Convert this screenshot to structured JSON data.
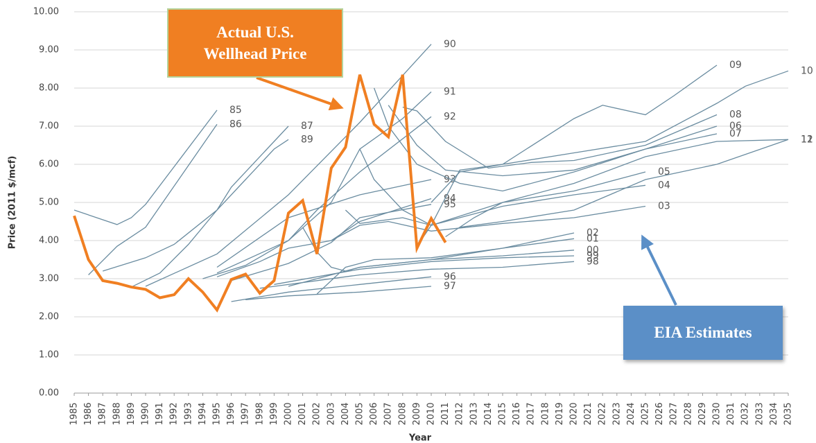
{
  "chart_data": {
    "type": "line",
    "xlabel": "Year",
    "ylabel": "Price (2011 $/mcf)",
    "xlim": [
      1985,
      2035
    ],
    "xticks": [
      1985,
      1986,
      1987,
      1988,
      1989,
      1990,
      1991,
      1992,
      1993,
      1994,
      1995,
      1996,
      1997,
      1998,
      1999,
      2000,
      2001,
      2002,
      2003,
      2004,
      2005,
      2006,
      2007,
      2008,
      2009,
      2010,
      2011,
      2012,
      2013,
      2014,
      2015,
      2016,
      2017,
      2018,
      2019,
      2020,
      2021,
      2022,
      2023,
      2024,
      2025,
      2026,
      2027,
      2028,
      2029,
      2030,
      2031,
      2032,
      2033,
      2034,
      2035
    ],
    "ylim": [
      0,
      10
    ],
    "yticks": [
      {
        "value": 0,
        "label": "0.00"
      },
      {
        "value": 1,
        "label": "1.00"
      },
      {
        "value": 2,
        "label": "2.00"
      },
      {
        "value": 3,
        "label": "3.00"
      },
      {
        "value": 4,
        "label": "4.00"
      },
      {
        "value": 5,
        "label": "5.00"
      },
      {
        "value": 6,
        "label": "6.00"
      },
      {
        "value": 7,
        "label": "7.00"
      },
      {
        "value": 8,
        "label": "8.00"
      },
      {
        "value": 9,
        "label": "9.00"
      },
      {
        "value": 10,
        "label": "10.00"
      }
    ],
    "grid": true,
    "annotations": [
      {
        "text": "Actual U.S. Wellhead Price",
        "color": "#f07f22"
      },
      {
        "text": "EIA Estimates",
        "color": "#5b8fc7"
      }
    ],
    "actual": {
      "color": "#f07f22",
      "x": [
        1985,
        1986,
        1987,
        1988,
        1989,
        1990,
        1991,
        1992,
        1993,
        1994,
        1995,
        1996,
        1997,
        1998,
        1999,
        2000,
        2001,
        2002,
        2003,
        2004,
        2005,
        2006,
        2007,
        2008,
        2009,
        2010,
        2011
      ],
      "values": [
        4.65,
        3.5,
        2.95,
        2.88,
        2.78,
        2.72,
        2.5,
        2.58,
        3.0,
        2.65,
        2.18,
        2.98,
        3.12,
        2.62,
        2.95,
        4.72,
        5.05,
        3.65,
        5.9,
        6.45,
        8.35,
        7.05,
        6.72,
        8.35,
        3.8,
        4.58,
        3.95
      ]
    },
    "series": [
      {
        "name": "85",
        "color": "#6a8ca0",
        "x": [
          1985,
          1988,
          1989,
          1990,
          1995
        ],
        "values": [
          4.8,
          4.42,
          4.6,
          4.95,
          7.42
        ]
      },
      {
        "name": "86",
        "color": "#6a8ca0",
        "x": [
          1986,
          1988,
          1990,
          1995
        ],
        "values": [
          3.1,
          3.85,
          4.35,
          7.05
        ]
      },
      {
        "name": "87",
        "color": "#6a8ca0",
        "x": [
          1987,
          1990,
          1992,
          1995,
          1996,
          2000
        ],
        "values": [
          3.2,
          3.55,
          3.9,
          4.8,
          5.4,
          7.0
        ]
      },
      {
        "name": "89",
        "color": "#6a8ca0",
        "x": [
          1989,
          1991,
          1993,
          1995,
          1997,
          1999,
          2000
        ],
        "values": [
          2.78,
          3.15,
          3.9,
          4.8,
          5.6,
          6.4,
          6.65
        ]
      },
      {
        "name": "90",
        "color": "#6a8ca0",
        "x": [
          1990,
          1995,
          2000,
          2005,
          2010
        ],
        "values": [
          2.8,
          3.65,
          5.2,
          7.1,
          9.15
        ]
      },
      {
        "name": "91",
        "color": "#6a8ca0",
        "x": [
          1995,
          2000,
          2003,
          2005,
          2008,
          2010
        ],
        "values": [
          3.15,
          4.0,
          5.0,
          6.4,
          7.2,
          7.9
        ]
      },
      {
        "name": "92",
        "color": "#6a8ca0",
        "x": [
          1994,
          1997,
          2000,
          2002,
          2005,
          2010
        ],
        "values": [
          3.0,
          3.35,
          4.0,
          4.8,
          5.8,
          7.25
        ]
      },
      {
        "name": "93",
        "color": "#6a8ca0",
        "x": [
          1995,
          2000,
          2005,
          2010
        ],
        "values": [
          3.3,
          4.6,
          5.2,
          5.6
        ]
      },
      {
        "name": "94",
        "color": "#6a8ca0",
        "x": [
          1995,
          1998,
          2000,
          2003,
          2005,
          2010
        ],
        "values": [
          3.05,
          3.45,
          3.8,
          4.0,
          4.5,
          5.1
        ]
      },
      {
        "name": "95",
        "color": "#6a8ca0",
        "x": [
          1996,
          2000,
          2003,
          2005,
          2010
        ],
        "values": [
          2.95,
          3.4,
          3.95,
          4.6,
          4.95
        ]
      },
      {
        "name": "96",
        "color": "#6a8ca0",
        "x": [
          1996,
          2000,
          2005,
          2010
        ],
        "values": [
          2.4,
          2.65,
          2.85,
          3.05
        ]
      },
      {
        "name": "97",
        "color": "#6a8ca0",
        "x": [
          1997,
          2000,
          2005,
          2010
        ],
        "values": [
          2.45,
          2.55,
          2.65,
          2.8
        ]
      },
      {
        "name": "98",
        "color": "#6a8ca0",
        "x": [
          1998,
          2002,
          2005,
          2010,
          2015,
          2020
        ],
        "values": [
          2.75,
          2.95,
          3.1,
          3.25,
          3.3,
          3.45
        ]
      },
      {
        "name": "99",
        "color": "#6a8ca0",
        "x": [
          1999,
          2005,
          2010,
          2015,
          2020
        ],
        "values": [
          2.85,
          3.25,
          3.45,
          3.55,
          3.6
        ]
      },
      {
        "name": "00",
        "color": "#6a8ca0",
        "x": [
          2000,
          2005,
          2010,
          2015,
          2020
        ],
        "values": [
          2.8,
          3.3,
          3.5,
          3.6,
          3.75
        ]
      },
      {
        "name": "01",
        "color": "#6a8ca0",
        "x": [
          2001,
          2002,
          2003,
          2004,
          2005,
          2010,
          2015,
          2020
        ],
        "values": [
          4.35,
          3.7,
          3.3,
          3.2,
          3.3,
          3.5,
          3.8,
          4.05
        ]
      },
      {
        "name": "02",
        "color": "#6a8ca0",
        "x": [
          2002,
          2004,
          2006,
          2010,
          2015,
          2020
        ],
        "values": [
          2.6,
          3.3,
          3.5,
          3.55,
          3.8,
          4.2
        ]
      },
      {
        "name": "03",
        "color": "#6a8ca0",
        "x": [
          2003,
          2005,
          2007,
          2010,
          2015,
          2020,
          2025
        ],
        "values": [
          4.0,
          4.4,
          4.5,
          4.25,
          4.45,
          4.6,
          4.9
        ]
      },
      {
        "name": "04",
        "color": "#6a8ca0",
        "x": [
          2004,
          2005,
          2008,
          2010,
          2015,
          2020,
          2025
        ],
        "values": [
          4.8,
          4.45,
          4.6,
          4.4,
          4.9,
          5.2,
          5.45
        ]
      },
      {
        "name": "05",
        "color": "#6a8ca0",
        "x": [
          2005,
          2006,
          2008,
          2010,
          2015,
          2020,
          2025
        ],
        "values": [
          6.4,
          5.6,
          4.8,
          4.4,
          5.0,
          5.3,
          5.8
        ]
      },
      {
        "name": "06",
        "color": "#6a8ca0",
        "x": [
          2006,
          2007,
          2009,
          2012,
          2015,
          2020,
          2025,
          2030
        ],
        "values": [
          8.0,
          7.0,
          6.0,
          5.5,
          5.3,
          5.8,
          6.4,
          7.0
        ]
      },
      {
        "name": "07",
        "color": "#6a8ca0",
        "x": [
          2007,
          2009,
          2011,
          2015,
          2020,
          2025,
          2030
        ],
        "values": [
          7.55,
          6.5,
          5.85,
          5.7,
          5.85,
          6.4,
          6.8
        ]
      },
      {
        "name": "08",
        "color": "#6a8ca0",
        "x": [
          2008,
          2009,
          2011,
          2014,
          2017,
          2020,
          2025,
          2030
        ],
        "values": [
          7.5,
          7.4,
          6.6,
          5.9,
          6.05,
          6.1,
          6.5,
          7.3
        ]
      },
      {
        "name": "09",
        "color": "#6a8ca0",
        "x": [
          2009,
          2010,
          2012,
          2015,
          2020,
          2022,
          2025,
          2027,
          2030
        ],
        "values": [
          3.85,
          4.4,
          5.85,
          6.0,
          7.2,
          7.55,
          7.3,
          7.8,
          8.6
        ]
      },
      {
        "name": "10",
        "color": "#6a8ca0",
        "x": [
          2010,
          2012,
          2015,
          2020,
          2025,
          2030,
          2032,
          2035
        ],
        "values": [
          5.0,
          5.8,
          6.0,
          6.3,
          6.6,
          7.6,
          8.05,
          8.45
        ]
      },
      {
        "name": "11",
        "color": "#6a8ca0",
        "x": [
          2011,
          2013,
          2015,
          2020,
          2025,
          2030,
          2035
        ],
        "values": [
          4.1,
          4.6,
          5.0,
          5.5,
          6.2,
          6.6,
          6.65
        ]
      },
      {
        "name": "12",
        "color": "#6a8ca0",
        "x": [
          2012,
          2015,
          2020,
          2025,
          2030,
          2035
        ],
        "values": [
          4.35,
          4.5,
          4.8,
          5.6,
          6.0,
          6.65
        ]
      }
    ]
  }
}
